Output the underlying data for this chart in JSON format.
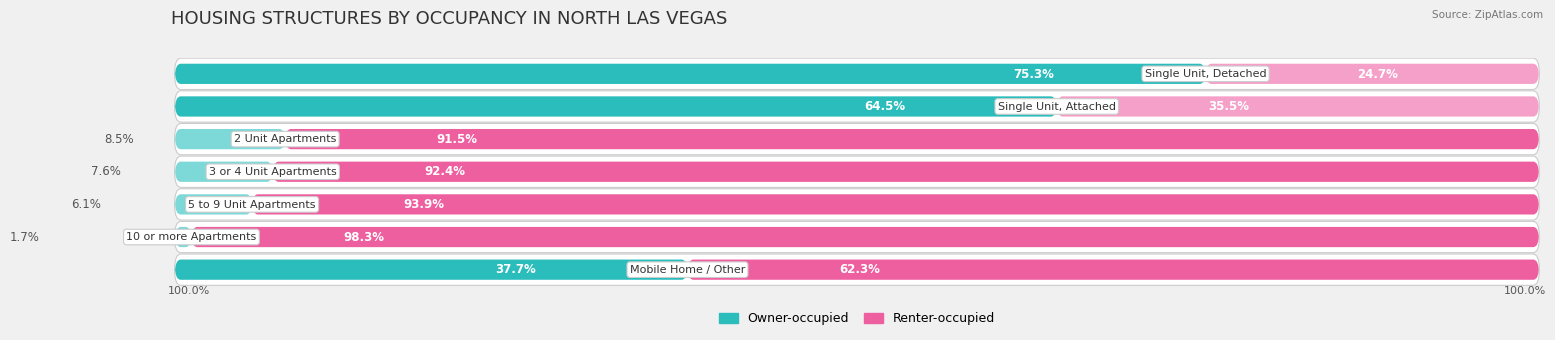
{
  "title": "HOUSING STRUCTURES BY OCCUPANCY IN NORTH LAS VEGAS",
  "source": "Source: ZipAtlas.com",
  "categories": [
    "Single Unit, Detached",
    "Single Unit, Attached",
    "2 Unit Apartments",
    "3 or 4 Unit Apartments",
    "5 to 9 Unit Apartments",
    "10 or more Apartments",
    "Mobile Home / Other"
  ],
  "owner_pct": [
    75.3,
    64.5,
    8.5,
    7.6,
    6.1,
    1.7,
    37.7
  ],
  "renter_pct": [
    24.7,
    35.5,
    91.5,
    92.4,
    93.9,
    98.3,
    62.3
  ],
  "owner_color_dark": "#2BBCBC",
  "owner_color_light": "#7DD8D8",
  "renter_color_dark": "#EE5FA0",
  "renter_color_light": "#F5A0C8",
  "owner_label": "Owner-occupied",
  "renter_label": "Renter-occupied",
  "background_color": "#f0f0f0",
  "row_bg_color": "#e8e8e8",
  "bar_height": 0.62,
  "title_fontsize": 13,
  "pct_fontsize": 8.5,
  "cat_fontsize": 8.0,
  "legend_fontsize": 9,
  "x_left_label": "100.0%",
  "x_right_label": "100.0%"
}
